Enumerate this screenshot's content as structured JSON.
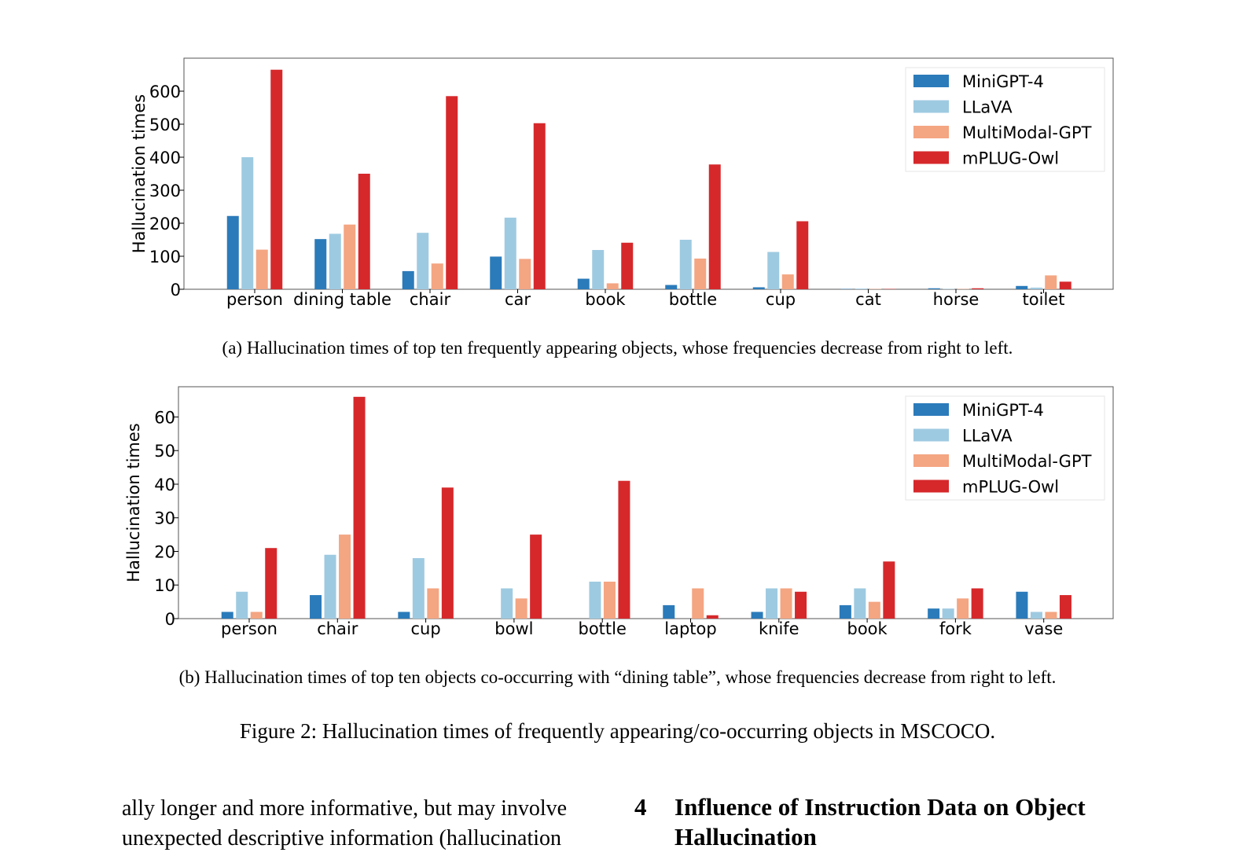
{
  "chart_data": [
    {
      "type": "bar",
      "categories": [
        "person",
        "dining table",
        "chair",
        "car",
        "book",
        "bottle",
        "cup",
        "cat",
        "horse",
        "toilet"
      ],
      "series": [
        {
          "name": "MiniGPT-4",
          "color": "#2b7bba",
          "values": [
            222,
            152,
            55,
            99,
            32,
            13,
            6,
            1,
            3,
            10
          ]
        },
        {
          "name": "LLaVA",
          "color": "#9ecae1",
          "values": [
            400,
            168,
            171,
            217,
            119,
            150,
            113,
            2,
            1,
            5
          ]
        },
        {
          "name": "MultiModal-GPT",
          "color": "#f4a582",
          "values": [
            120,
            196,
            78,
            92,
            18,
            93,
            45,
            1,
            1,
            42
          ]
        },
        {
          "name": "mPLUG-Owl",
          "color": "#d6282b",
          "values": [
            665,
            350,
            585,
            503,
            141,
            378,
            206,
            1,
            3,
            23
          ]
        }
      ],
      "ylabel": "Hallucination times",
      "yticks": [
        0,
        100,
        200,
        300,
        400,
        500,
        600
      ],
      "ylim": [
        0,
        700
      ],
      "legend_position": "top-right",
      "grid": false
    },
    {
      "type": "bar",
      "categories": [
        "person",
        "chair",
        "cup",
        "bowl",
        "bottle",
        "laptop",
        "knife",
        "book",
        "fork",
        "vase"
      ],
      "series": [
        {
          "name": "MiniGPT-4",
          "color": "#2b7bba",
          "values": [
            2,
            7,
            2,
            0,
            0,
            4,
            2,
            4,
            3,
            8
          ]
        },
        {
          "name": "LLaVA",
          "color": "#9ecae1",
          "values": [
            8,
            19,
            18,
            9,
            11,
            0,
            9,
            9,
            3,
            2
          ]
        },
        {
          "name": "MultiModal-GPT",
          "color": "#f4a582",
          "values": [
            2,
            25,
            9,
            6,
            11,
            9,
            9,
            5,
            6,
            2
          ]
        },
        {
          "name": "mPLUG-Owl",
          "color": "#d6282b",
          "values": [
            21,
            66,
            39,
            25,
            41,
            1,
            8,
            17,
            9,
            7
          ]
        }
      ],
      "ylabel": "Hallucination times",
      "yticks": [
        0,
        10,
        20,
        30,
        40,
        50,
        60
      ],
      "ylim": [
        0,
        69
      ],
      "legend_position": "top-right",
      "grid": false
    }
  ],
  "captions": {
    "a": "(a)  Hallucination times of top ten frequently appearing objects, whose frequencies decrease from right to left.",
    "b": "(b)  Hallucination times of top ten objects co-occurring with “dining table”, whose frequencies decrease from right to left.",
    "figure": "Figure 2: Hallucination times of frequently appearing/co-occurring objects in MSCOCO."
  },
  "body": {
    "left_col": "ally longer and more informative, but may involve unexpected descriptive information (hallucination",
    "section_number": "4",
    "section_title": "Influence of Instruction Data on Object Hallucination"
  }
}
